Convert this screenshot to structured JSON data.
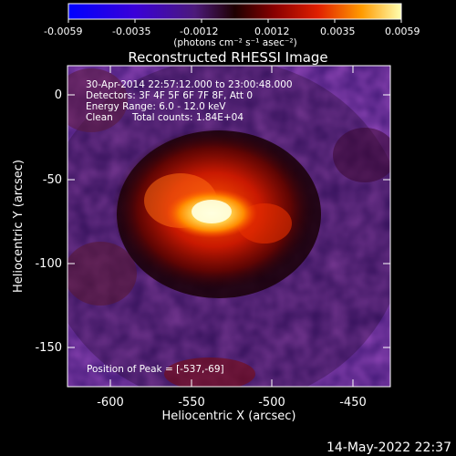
{
  "colorbar": {
    "ticks": [
      "-0.0059",
      "-0.0035",
      "-0.0012",
      "0.0012",
      "0.0035",
      "0.0059"
    ],
    "units": "(photons cm⁻² s⁻¹ asec⁻²)"
  },
  "title": "Reconstructed RHESSI Image",
  "info": {
    "time_range": "30-Apr-2014 22:57:12.000 to 23:00:48.000",
    "detectors": "Detectors: 3F 4F 5F 6F 7F 8F, Att 0",
    "energy": "Energy Range: 6.0 - 12.0 keV",
    "method": "Clean",
    "counts": "Total counts: 1.84E+04"
  },
  "peak_label": "Position of Peak = [-537,-69]",
  "axes": {
    "xlabel": "Heliocentric X (arcsec)",
    "ylabel": "Heliocentric Y (arcsec)",
    "xticks": [
      "-600",
      "-550",
      "-500",
      "-450"
    ],
    "yticks": [
      "0",
      "-50",
      "-100",
      "-150"
    ]
  },
  "timestamp": "14-May-2022 22:37"
}
